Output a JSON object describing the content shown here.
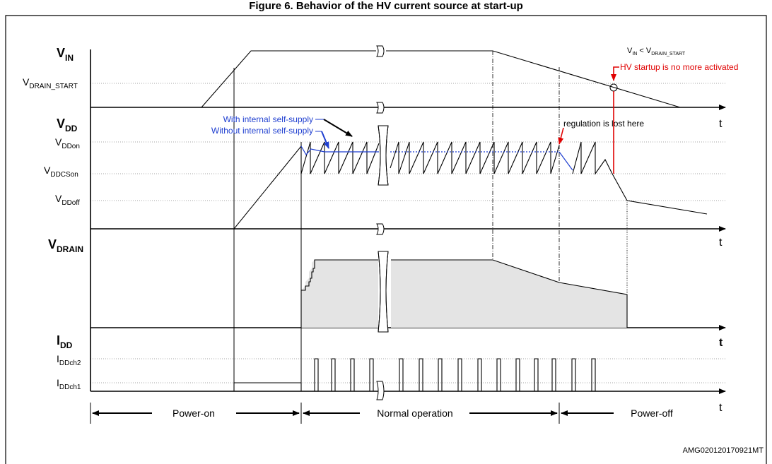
{
  "header": {
    "title": "Figure 6. Behavior of the HV current source at start-up"
  },
  "signals": {
    "vin": {
      "main": "V",
      "sub": "IN"
    },
    "vdd": {
      "main": "V",
      "sub": "DD"
    },
    "vdrain": {
      "main": "V",
      "sub": "DRAIN"
    },
    "idd": {
      "main": "I",
      "sub": "DD"
    }
  },
  "levels": {
    "vdrain_start": {
      "main": "V",
      "sub": "DRAIN_START"
    },
    "vddon": {
      "main": "V",
      "sub": "DDon"
    },
    "vddcson": {
      "main": "V",
      "sub": "DDCSon"
    },
    "vddoff": {
      "main": "V",
      "sub": "DDoff"
    },
    "iddch2": {
      "main": "I",
      "sub": "DDch2"
    },
    "iddch1": {
      "main": "I",
      "sub": "DDch1"
    }
  },
  "time_label": "t",
  "annotations": {
    "with_self_supply": "With internal self-supply",
    "without_self_supply": "Without internal self-supply",
    "regulation_lost": "regulation is lost here",
    "vin_condition_a": "V",
    "vin_condition_a_sub": "IN",
    "vin_condition_b": " < V",
    "vin_condition_b_sub": "DRAIN_START",
    "hv_startup": "HV startup is no more activated"
  },
  "phases": {
    "power_on": "Power-on",
    "normal": "Normal operation",
    "power_off": "Power-off"
  },
  "footer_code": "AMG020120170921MT",
  "colors": {
    "blue": "#1f3fd0",
    "red": "#e00000",
    "fill_gray": "#e4e4e4"
  }
}
